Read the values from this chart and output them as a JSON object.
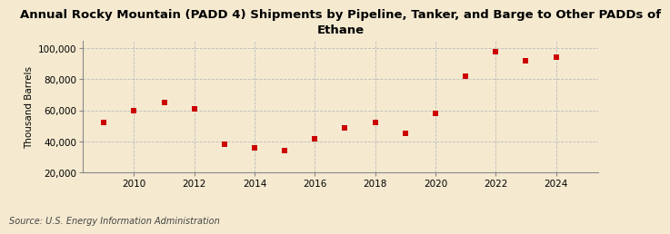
{
  "title": "Annual Rocky Mountain (PADD 4) Shipments by Pipeline, Tanker, and Barge to Other PADDs of\nEthane",
  "ylabel": "Thousand Barrels",
  "source": "Source: U.S. Energy Information Administration",
  "years": [
    2009,
    2010,
    2011,
    2012,
    2013,
    2014,
    2015,
    2016,
    2017,
    2018,
    2019,
    2020,
    2021,
    2022,
    2023,
    2024
  ],
  "values": [
    52000,
    60000,
    65000,
    61000,
    38000,
    36000,
    34000,
    42000,
    49000,
    52000,
    45000,
    58000,
    82000,
    98000,
    92000,
    94000
  ],
  "ylim": [
    20000,
    105000
  ],
  "yticks": [
    20000,
    40000,
    60000,
    80000,
    100000
  ],
  "xlim": [
    2008.3,
    2025.4
  ],
  "xticks": [
    2010,
    2012,
    2014,
    2016,
    2018,
    2020,
    2022,
    2024
  ],
  "marker_color": "#cc0000",
  "marker": "s",
  "marker_size": 4,
  "bg_color": "#f5ead0",
  "grid_color": "#bbbbbb",
  "title_fontsize": 9.5,
  "label_fontsize": 7.5,
  "tick_fontsize": 7.5,
  "source_fontsize": 7.0
}
